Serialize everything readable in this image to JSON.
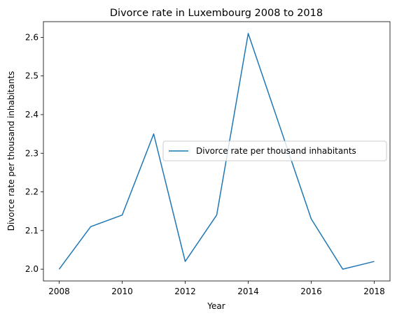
{
  "chart_data": {
    "type": "line",
    "title": "Divorce rate in Luxembourg 2008 to 2018",
    "xlabel": "Year",
    "ylabel": "Divorce rate per thousand inhabitants",
    "x": [
      2008,
      2009,
      2010,
      2011,
      2012,
      2013,
      2014,
      2015,
      2016,
      2017,
      2018
    ],
    "series": [
      {
        "name": "Divorce rate per thousand inhabitants",
        "values": [
          2.0,
          2.11,
          2.14,
          2.35,
          2.02,
          2.14,
          2.61,
          2.37,
          2.13,
          2.0,
          2.02
        ],
        "color": "#1f77b4"
      }
    ],
    "xlim": [
      2007.5,
      2018.5
    ],
    "ylim": [
      1.9695,
      2.6405
    ],
    "xticks": [
      2008,
      2010,
      2012,
      2014,
      2016,
      2018
    ],
    "yticks": [
      2.0,
      2.1,
      2.2,
      2.3,
      2.4,
      2.5,
      2.6
    ],
    "grid": false,
    "legend_position": "center-right"
  }
}
